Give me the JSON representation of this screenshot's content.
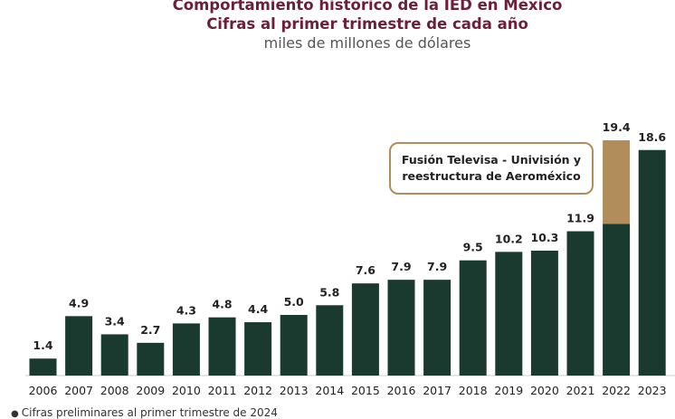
{
  "title_line1": "Comportamiento histórico de la IED en México",
  "title_line2": "Cifras al primer trimestre de cada año",
  "subtitle": "miles de millones de dólares",
  "annotation": {
    "line1": "Fusión Televisa - Univisión y",
    "line2": "reestructura de Aeroméxico"
  },
  "footnote": "Cifras preliminares al primer trimestre de 2024",
  "colors": {
    "bar": "#1b3a2f",
    "highlight": "#b08d5b",
    "title": "#6b1f3a",
    "annotation_border": "#b08d5b"
  },
  "chart_data": {
    "type": "bar",
    "title": "Comportamiento histórico de la IED en México",
    "subtitle": "Cifras al primer trimestre de cada año",
    "ylabel": "miles de millones de dólares",
    "categories": [
      "2006",
      "2007",
      "2008",
      "2009",
      "2010",
      "2011",
      "2012",
      "2013",
      "2014",
      "2015",
      "2016",
      "2017",
      "2018",
      "2019",
      "2020",
      "2021",
      "2022",
      "2023"
    ],
    "values": [
      1.4,
      4.9,
      3.4,
      2.7,
      4.3,
      4.8,
      4.4,
      5.0,
      5.8,
      7.6,
      7.9,
      7.9,
      9.5,
      10.2,
      10.3,
      11.9,
      19.4,
      18.6
    ],
    "value_labels": [
      "1.4",
      "4.9",
      "3.4",
      "2.7",
      "4.3",
      "4.8",
      "4.4",
      "5.0",
      "5.8",
      "7.6",
      "7.9",
      "7.9",
      "9.5",
      "10.2",
      "10.3",
      "11.9",
      "19.4",
      "18.6"
    ],
    "stacked_highlight": {
      "category": "2022",
      "base": 12.5,
      "extra": 6.9,
      "note": "Fusión Televisa - Univisión y reestructura de Aeroméxico"
    },
    "ylim": [
      0,
      20
    ],
    "grid": false,
    "legend": "none"
  }
}
